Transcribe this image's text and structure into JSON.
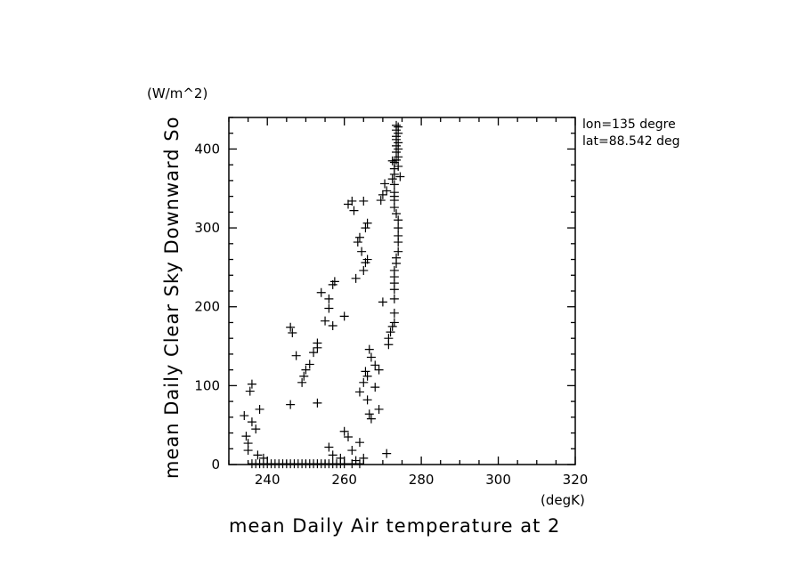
{
  "chart_data": {
    "type": "scatter",
    "marker": "+",
    "xlabel": "mean Daily Air temperature at 2",
    "x_unit": "(degK)",
    "ylabel": "mean Daily Clear Sky Downward So",
    "y_unit": "(W/m^2)",
    "xlim": [
      230,
      320
    ],
    "ylim": [
      0,
      440
    ],
    "x_ticks": [
      240,
      260,
      280,
      300,
      320
    ],
    "y_ticks": [
      0,
      100,
      200,
      300,
      400
    ],
    "annotations": [
      "lon=135 degre",
      "lat=88.542 deg"
    ],
    "points": [
      [
        234,
        62
      ],
      [
        234.5,
        36
      ],
      [
        235,
        27
      ],
      [
        235,
        18
      ],
      [
        235.5,
        93
      ],
      [
        236,
        102
      ],
      [
        236,
        54
      ],
      [
        237,
        45
      ],
      [
        238,
        70
      ],
      [
        237.5,
        12
      ],
      [
        239,
        8
      ],
      [
        246,
        174
      ],
      [
        246.5,
        167
      ],
      [
        247.5,
        138
      ],
      [
        246,
        76
      ],
      [
        249,
        104
      ],
      [
        249.5,
        112
      ],
      [
        250,
        120
      ],
      [
        251,
        127
      ],
      [
        252,
        142
      ],
      [
        253,
        148
      ],
      [
        253,
        154
      ],
      [
        253,
        78
      ],
      [
        254,
        218
      ],
      [
        255,
        182
      ],
      [
        256,
        198
      ],
      [
        256,
        210
      ],
      [
        257,
        176
      ],
      [
        257,
        228
      ],
      [
        257.5,
        232
      ],
      [
        260,
        188
      ],
      [
        256,
        22
      ],
      [
        257,
        12
      ],
      [
        259,
        8
      ],
      [
        260,
        42
      ],
      [
        261,
        35
      ],
      [
        262,
        18
      ],
      [
        263,
        5
      ],
      [
        264,
        28
      ],
      [
        265,
        8
      ],
      [
        261,
        330
      ],
      [
        262,
        334
      ],
      [
        262.5,
        322
      ],
      [
        263,
        236
      ],
      [
        263.5,
        282
      ],
      [
        264,
        288
      ],
      [
        264.5,
        270
      ],
      [
        265,
        246
      ],
      [
        265.5,
        256
      ],
      [
        266,
        260
      ],
      [
        265.5,
        300
      ],
      [
        266,
        306
      ],
      [
        265,
        334
      ],
      [
        264,
        92
      ],
      [
        265,
        104
      ],
      [
        265.5,
        118
      ],
      [
        266,
        82
      ],
      [
        266,
        112
      ],
      [
        266.5,
        64
      ],
      [
        266.5,
        146
      ],
      [
        267,
        58
      ],
      [
        267,
        136
      ],
      [
        268,
        98
      ],
      [
        268,
        126
      ],
      [
        269,
        120
      ],
      [
        269,
        70
      ],
      [
        270,
        206
      ],
      [
        271,
        14
      ],
      [
        269.5,
        335
      ],
      [
        270,
        342
      ],
      [
        270.5,
        356
      ],
      [
        271,
        347
      ],
      [
        271.5,
        152
      ],
      [
        271.5,
        160
      ],
      [
        272,
        168
      ],
      [
        272.5,
        175
      ],
      [
        273,
        180
      ],
      [
        273,
        192
      ],
      [
        273,
        210
      ],
      [
        273,
        222
      ],
      [
        273,
        230
      ],
      [
        273,
        238
      ],
      [
        273,
        246
      ],
      [
        273.5,
        255
      ],
      [
        273.5,
        262
      ],
      [
        274,
        270
      ],
      [
        274,
        282
      ],
      [
        274,
        290
      ],
      [
        274,
        300
      ],
      [
        274,
        310
      ],
      [
        273.5,
        318
      ],
      [
        273,
        326
      ],
      [
        273,
        335
      ],
      [
        273,
        345
      ],
      [
        273,
        355
      ],
      [
        272.5,
        362
      ],
      [
        273,
        368
      ],
      [
        273,
        375
      ],
      [
        274,
        378
      ],
      [
        273,
        383
      ],
      [
        273.5,
        386
      ],
      [
        274,
        390
      ],
      [
        273.5,
        396
      ],
      [
        274,
        400
      ],
      [
        273.5,
        404
      ],
      [
        274,
        408
      ],
      [
        273.5,
        412
      ],
      [
        273.5,
        416
      ],
      [
        274,
        420
      ],
      [
        273.5,
        424
      ],
      [
        274,
        428
      ],
      [
        273.5,
        430
      ],
      [
        273,
        340
      ],
      [
        274.5,
        365
      ],
      [
        272.5,
        385
      ]
    ],
    "zero_run": [
      236,
      237,
      238,
      239,
      240,
      241,
      242,
      243,
      244,
      245,
      246,
      247,
      248,
      249,
      250,
      251,
      252,
      253,
      254,
      255,
      256,
      257,
      258,
      259,
      260,
      262,
      264
    ]
  }
}
